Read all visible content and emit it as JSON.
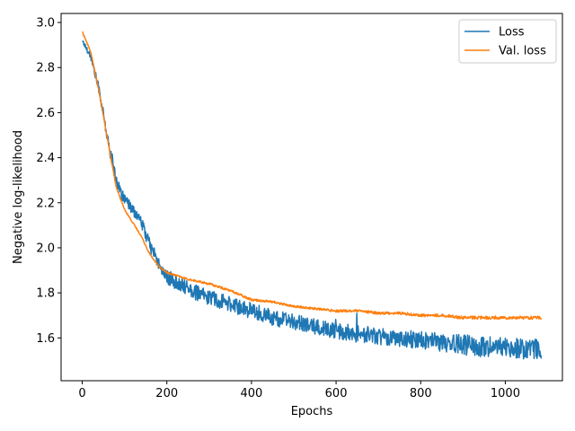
{
  "chart_data": {
    "type": "line",
    "xlabel": "Epochs",
    "ylabel": "Negative log-likelihood",
    "xlim": [
      -50,
      1135
    ],
    "ylim": [
      1.41,
      3.04
    ],
    "x_ticks": [
      0,
      200,
      400,
      600,
      800,
      1000
    ],
    "y_ticks": [
      1.6,
      1.8,
      2.0,
      2.2,
      2.4,
      2.6,
      2.8,
      3.0
    ],
    "x_tick_labels": [
      "0",
      "200",
      "400",
      "600",
      "800",
      "1000"
    ],
    "y_tick_labels": [
      "1.6",
      "1.8",
      "2.0",
      "2.2",
      "2.4",
      "2.6",
      "2.8",
      "3.0"
    ],
    "grid": false,
    "legend_position": "top-right",
    "series": [
      {
        "name": "Loss",
        "color": "#1f77b4",
        "x": [
          0,
          20,
          40,
          60,
          80,
          100,
          120,
          140,
          160,
          180,
          200,
          220,
          240,
          260,
          280,
          300,
          350,
          400,
          450,
          500,
          550,
          600,
          650,
          700,
          750,
          800,
          850,
          900,
          950,
          1000,
          1050,
          1085
        ],
        "values": [
          2.92,
          2.85,
          2.7,
          2.48,
          2.3,
          2.21,
          2.17,
          2.11,
          2.01,
          1.93,
          1.87,
          1.85,
          1.83,
          1.81,
          1.79,
          1.78,
          1.75,
          1.72,
          1.69,
          1.67,
          1.65,
          1.63,
          1.62,
          1.61,
          1.6,
          1.59,
          1.58,
          1.57,
          1.56,
          1.56,
          1.55,
          1.55
        ],
        "noise_amplitude": [
          0.01,
          0.015,
          0.02,
          0.025,
          0.025,
          0.025,
          0.025,
          0.025,
          0.03,
          0.03,
          0.03,
          0.035,
          0.035,
          0.035,
          0.035,
          0.035,
          0.035,
          0.035,
          0.035,
          0.035,
          0.035,
          0.035,
          0.04,
          0.04,
          0.04,
          0.04,
          0.04,
          0.045,
          0.045,
          0.045,
          0.045,
          0.045
        ]
      },
      {
        "name": "Val. loss",
        "color": "#ff7f0e",
        "x": [
          0,
          20,
          40,
          60,
          80,
          100,
          120,
          140,
          160,
          180,
          200,
          250,
          300,
          350,
          400,
          450,
          500,
          550,
          600,
          650,
          700,
          750,
          800,
          850,
          900,
          950,
          1000,
          1050,
          1085
        ],
        "values": [
          2.96,
          2.87,
          2.69,
          2.48,
          2.27,
          2.17,
          2.11,
          2.05,
          1.97,
          1.92,
          1.89,
          1.86,
          1.84,
          1.81,
          1.77,
          1.76,
          1.74,
          1.73,
          1.72,
          1.72,
          1.71,
          1.71,
          1.7,
          1.7,
          1.69,
          1.69,
          1.69,
          1.69,
          1.69
        ],
        "noise_amplitude": [
          0.003,
          0.003,
          0.003,
          0.003,
          0.003,
          0.003,
          0.003,
          0.003,
          0.004,
          0.004,
          0.004,
          0.004,
          0.005,
          0.005,
          0.005,
          0.005,
          0.005,
          0.005,
          0.006,
          0.006,
          0.006,
          0.006,
          0.006,
          0.006,
          0.007,
          0.007,
          0.007,
          0.007,
          0.007
        ]
      }
    ]
  }
}
